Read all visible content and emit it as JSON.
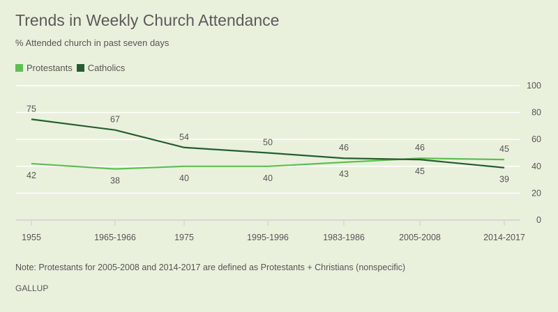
{
  "chart_data": {
    "type": "line",
    "title": "Trends in Weekly Church Attendance",
    "subtitle": "% Attended church in past seven days",
    "xlabel": "",
    "ylabel": "",
    "categories": [
      "1955",
      "1965-1966",
      "1975",
      "1995-1996",
      "1983-1986",
      "2005-2008",
      "2014-2017"
    ],
    "series": [
      {
        "name": "Protestants",
        "color": "#5cc050",
        "values": [
          42,
          38,
          40,
          40,
          43,
          46,
          45
        ],
        "label_position": [
          "below",
          "below",
          "below",
          "below",
          "below",
          "above",
          "above"
        ]
      },
      {
        "name": "Catholics",
        "color": "#245e30",
        "values": [
          75,
          67,
          54,
          50,
          46,
          45,
          39
        ],
        "label_position": [
          "above",
          "above",
          "above",
          "above",
          "above",
          "below",
          "below"
        ]
      }
    ],
    "ylim": [
      0,
      100
    ],
    "yticks": [
      0,
      20,
      40,
      60,
      80,
      100
    ],
    "grid": true,
    "y_axis_side": "right",
    "legend": "top-left"
  },
  "note": "Note: Protestants for 2005-2008 and 2014-2017 are defined as Protestants + Christians (nonspecific)",
  "brand": "GALLUP"
}
